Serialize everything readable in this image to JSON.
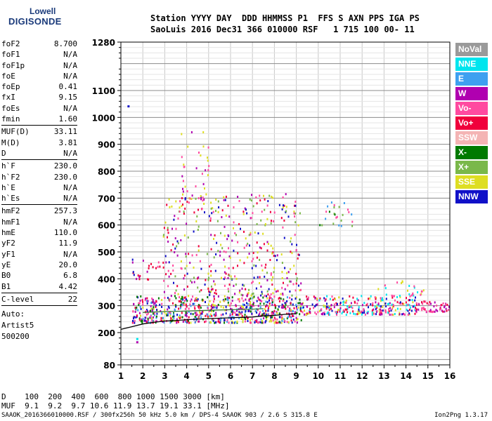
{
  "logo": {
    "line1": "Lowell",
    "line2": "DIGISONDE"
  },
  "header": {
    "row1": "Station YYYY DAY  DDD HHMMSS P1  FFS S AXN PPS IGA PS",
    "row2": "SaoLuis 2016 Dec31 366 010000 RSF   1 715 100 00- 11"
  },
  "params": {
    "group1": [
      {
        "key": "foF2",
        "value": "8.700"
      },
      {
        "key": "foF1",
        "value": "N/A"
      },
      {
        "key": "foF1p",
        "value": "N/A"
      },
      {
        "key": "foE",
        "value": "N/A"
      },
      {
        "key": "foEp",
        "value": "0.41"
      },
      {
        "key": "fxI",
        "value": "9.15"
      },
      {
        "key": "foEs",
        "value": "N/A"
      },
      {
        "key": "fmin",
        "value": "1.60"
      }
    ],
    "group2": [
      {
        "key": "MUF(D)",
        "value": "33.11"
      },
      {
        "key": "M(D)",
        "value": "3.81"
      },
      {
        "key": "D",
        "value": "N/A"
      }
    ],
    "group3": [
      {
        "key": "h`F",
        "value": "230.0"
      },
      {
        "key": "h`F2",
        "value": "230.0"
      },
      {
        "key": "h`E",
        "value": "N/A"
      },
      {
        "key": "h`Es",
        "value": "N/A"
      }
    ],
    "group4": [
      {
        "key": "hmF2",
        "value": "257.3"
      },
      {
        "key": "hmF1",
        "value": "N/A"
      },
      {
        "key": "hmE",
        "value": "110.0"
      },
      {
        "key": "yF2",
        "value": "11.9"
      },
      {
        "key": "yF1",
        "value": "N/A"
      },
      {
        "key": "yE",
        "value": "20.0"
      },
      {
        "key": "B0",
        "value": "6.8"
      },
      {
        "key": "B1",
        "value": "4.42"
      }
    ],
    "group5": [
      {
        "key": "C-level",
        "value": "22"
      }
    ]
  },
  "auto": [
    "Auto:",
    "Artist5",
    "500200"
  ],
  "legend": [
    {
      "label": "NoVal",
      "color": "#9a9a9a"
    },
    {
      "label": "NNE",
      "color": "#00e5ee"
    },
    {
      "label": "E",
      "color": "#3ea0f0"
    },
    {
      "label": "W",
      "color": "#b000b0"
    },
    {
      "label": "Vo-",
      "color": "#ff4aa0"
    },
    {
      "label": "Vo+",
      "color": "#f0003c"
    },
    {
      "label": "SSW",
      "color": "#f4b4b4"
    },
    {
      "label": "X-",
      "color": "#007a00"
    },
    {
      "label": "X+",
      "color": "#7ab84a"
    },
    {
      "label": "SSE",
      "color": "#dede22"
    },
    {
      "label": "NNW",
      "color": "#1010c8"
    }
  ],
  "dmuf": {
    "d_row": "D    100  200  400  600  800 1000 1500 3000 [km]",
    "muf_row": "MUF  9.1  9.2  9.7 10.6 11.9 13.7 19.1 33.1 [MHz]"
  },
  "footer": {
    "left": "SAAOK_2016366010000.RSF / 300fx256h 50 kHz 5.0 km / DPS-4 SAAOK 903 / 2.6 S 315.8 E",
    "right": "Ion2Png 1.3.17"
  },
  "chart_data": {
    "type": "scatter",
    "xlim": [
      1,
      16
    ],
    "ylim": [
      80,
      1280
    ],
    "x_ticks": [
      1,
      2,
      3,
      4,
      5,
      6,
      7,
      8,
      9,
      10,
      11,
      12,
      13,
      14,
      15,
      16
    ],
    "y_ticks": [
      80,
      200,
      300,
      400,
      500,
      600,
      700,
      800,
      900,
      1000,
      1100,
      1280
    ],
    "grid": true,
    "regions": [
      {
        "x": [
          1.5,
          9.2
        ],
        "y": [
          240,
          340
        ],
        "density": 700,
        "colors": [
          "#f0003c",
          "#ff4aa0",
          "#b000b0",
          "#1010c8",
          "#dede22",
          "#007a00",
          "#3ea0f0"
        ]
      },
      {
        "x": [
          2.9,
          9.2
        ],
        "y": [
          340,
          720
        ],
        "density": 420,
        "colors": [
          "#dede22",
          "#b000b0",
          "#1010c8",
          "#ff4aa0",
          "#7ab84a",
          "#f0003c"
        ]
      },
      {
        "x": [
          3.6,
          5.0
        ],
        "y": [
          700,
          950
        ],
        "density": 35,
        "colors": [
          "#b000b0",
          "#dede22",
          "#ff4aa0"
        ]
      },
      {
        "x": [
          9.2,
          14.4
        ],
        "y": [
          270,
          340
        ],
        "density": 280,
        "colors": [
          "#f0003c",
          "#ff4aa0",
          "#b000b0",
          "#dede22",
          "#1010c8",
          "#00e5ee"
        ]
      },
      {
        "x": [
          14.4,
          16.0
        ],
        "y": [
          280,
          320
        ],
        "density": 60,
        "colors": [
          "#b000b0",
          "#ff4aa0",
          "#f0003c"
        ]
      },
      {
        "x": [
          10.0,
          11.6
        ],
        "y": [
          600,
          700
        ],
        "density": 25,
        "colors": [
          "#007a00",
          "#3ea0f0",
          "#ff4aa0",
          "#7ab84a"
        ]
      },
      {
        "x": [
          12.5,
          14.8
        ],
        "y": [
          340,
          400
        ],
        "density": 25,
        "colors": [
          "#00e5ee",
          "#dede22",
          "#ff4aa0"
        ]
      },
      {
        "x": [
          1.5,
          2.3
        ],
        "y": [
          400,
          480
        ],
        "density": 16,
        "colors": [
          "#b000b0",
          "#1010c8",
          "#f0003c"
        ]
      },
      {
        "x": [
          2.3,
          3.2
        ],
        "y": [
          420,
          470
        ],
        "density": 10,
        "colors": [
          "#ff4aa0",
          "#f0003c"
        ]
      }
    ],
    "isolated_points": [
      {
        "x": 1.3,
        "y": 1045,
        "color": "#1010c8"
      },
      {
        "x": 1.7,
        "y": 180,
        "color": "#00e5ee"
      },
      {
        "x": 1.7,
        "y": 168,
        "color": "#b000b0"
      }
    ],
    "trace": {
      "x": [
        1.0,
        1.5,
        2.0,
        2.5,
        3.0,
        3.5,
        4.0,
        5.0,
        6.0,
        7.0,
        7.5,
        8.0,
        8.5,
        9.0
      ],
      "y": [
        212,
        222,
        232,
        238,
        243,
        245,
        248,
        252,
        255,
        258,
        262,
        264,
        268,
        270
      ],
      "color": "#000000"
    },
    "trace_green": {
      "x": [
        2.0,
        3.0,
        4.0,
        5.0,
        6.0,
        7.0,
        7.5
      ],
      "y": [
        275,
        278,
        280,
        283,
        285,
        287,
        289
      ],
      "color": "#3a7a3a"
    }
  }
}
